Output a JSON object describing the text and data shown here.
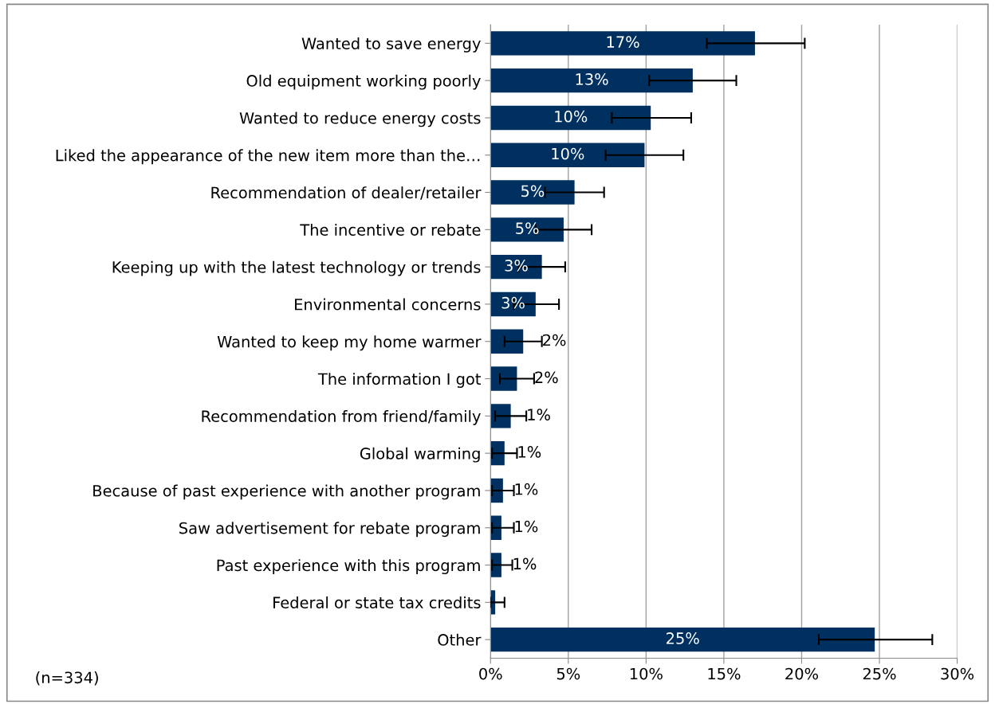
{
  "chart_data": {
    "type": "bar",
    "orientation": "horizontal",
    "categories": [
      "Wanted to save energy",
      "Old equipment working poorly",
      "Wanted to reduce energy costs",
      "Liked the appearance of the new item more than the…",
      "Recommendation of dealer/retailer",
      "The incentive or rebate",
      "Keeping up with the latest technology or trends",
      "Environmental concerns",
      "Wanted to keep my home warmer",
      "The information I got",
      "Recommendation from friend/family",
      "Global warming",
      "Because of past experience with another program",
      "Saw advertisement for rebate program",
      "Past experience with this program",
      "Federal or state tax credits",
      "Other"
    ],
    "values": [
      17.0,
      13.0,
      10.3,
      9.9,
      5.4,
      4.7,
      3.3,
      2.9,
      2.1,
      1.7,
      1.3,
      0.9,
      0.8,
      0.7,
      0.7,
      0.3,
      24.7
    ],
    "errors": [
      [
        13.9,
        20.2
      ],
      [
        10.2,
        15.8
      ],
      [
        7.8,
        12.9
      ],
      [
        7.4,
        12.4
      ],
      [
        3.5,
        7.3
      ],
      [
        2.9,
        6.5
      ],
      [
        1.8,
        4.8
      ],
      [
        1.5,
        4.4
      ],
      [
        0.9,
        3.3
      ],
      [
        0.6,
        2.8
      ],
      [
        0.3,
        2.3
      ],
      [
        0.1,
        1.7
      ],
      [
        0.1,
        1.5
      ],
      [
        0.1,
        1.5
      ],
      [
        0.1,
        1.4
      ],
      [
        0.0,
        0.9
      ],
      [
        21.1,
        28.4
      ]
    ],
    "value_labels": [
      "17%",
      "13%",
      "10%",
      "10%",
      "5%",
      "5%",
      "3%",
      "3%",
      "2%",
      "2%",
      "1%",
      "1%",
      "1%",
      "1%",
      "1%",
      null,
      "25%"
    ],
    "color": "#003060",
    "xlim": [
      0,
      30
    ],
    "xticks": [
      {
        "value": 0,
        "label": "0%"
      },
      {
        "value": 5,
        "label": "5%"
      },
      {
        "value": 10,
        "label": "10%"
      },
      {
        "value": 15,
        "label": "15%"
      },
      {
        "value": 20,
        "label": "20%"
      },
      {
        "value": 25,
        "label": "25%"
      },
      {
        "value": 30,
        "label": "30%"
      }
    ],
    "grid": "x",
    "annotations": [
      "(n=334)"
    ]
  }
}
